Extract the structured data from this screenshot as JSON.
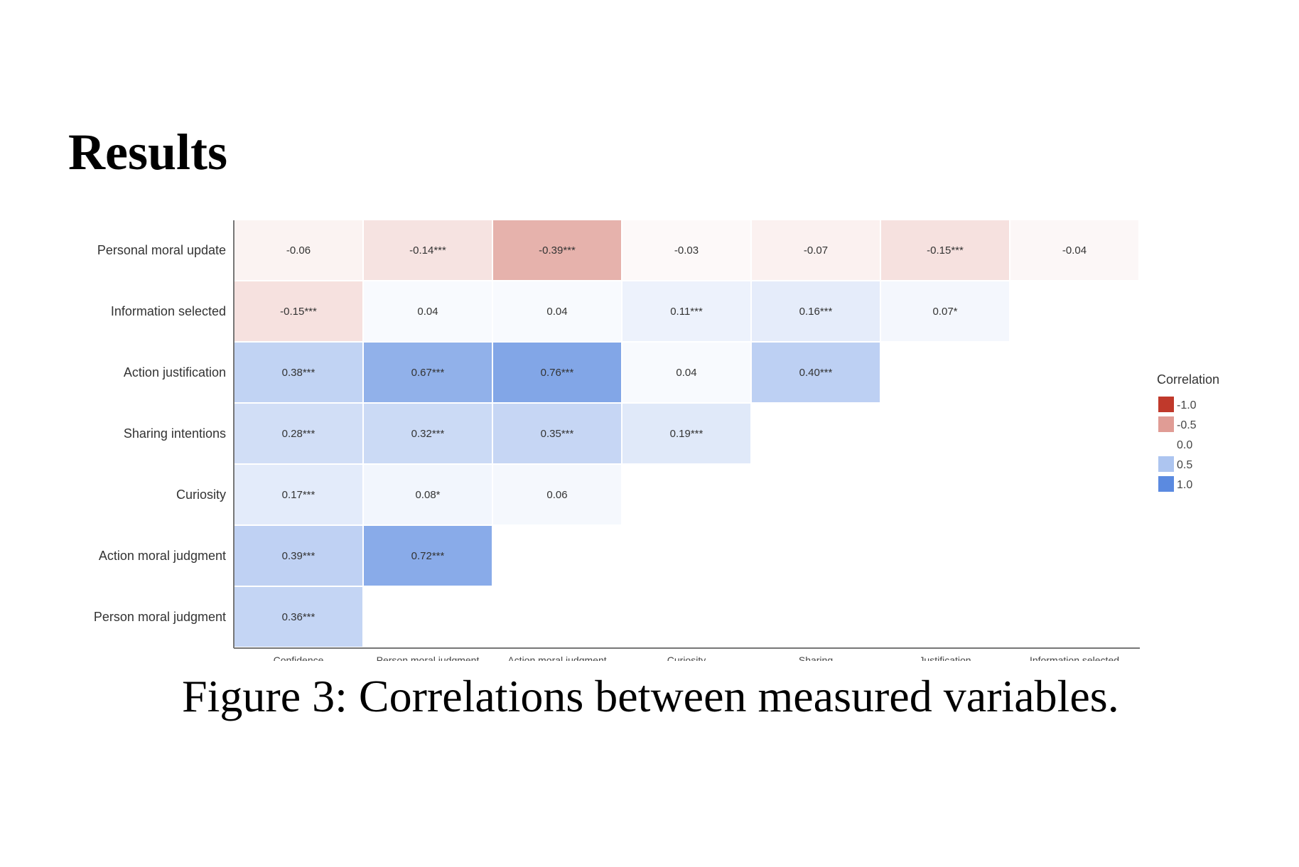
{
  "page": {
    "heading": "Results",
    "caption": "Figure 3: Correlations between measured variables."
  },
  "chart_data": {
    "type": "heatmap",
    "title": "",
    "rows": [
      "Personal moral update",
      "Information selected",
      "Action justification",
      "Sharing intentions",
      "Curiosity",
      "Action moral judgment",
      "Person moral judgment"
    ],
    "columns": [
      "Confidence",
      "Person moral judgment",
      "Action moral judgment",
      "Curiosity",
      "Sharing",
      "Justification",
      "Information selected"
    ],
    "values": [
      [
        -0.06,
        -0.14,
        -0.39,
        -0.03,
        -0.07,
        -0.15,
        -0.04
      ],
      [
        -0.15,
        0.04,
        0.04,
        0.11,
        0.16,
        0.07,
        null
      ],
      [
        0.38,
        0.67,
        0.76,
        0.04,
        0.4,
        null,
        null
      ],
      [
        0.28,
        0.32,
        0.35,
        0.19,
        null,
        null,
        null
      ],
      [
        0.17,
        0.08,
        0.06,
        null,
        null,
        null,
        null
      ],
      [
        0.39,
        0.72,
        null,
        null,
        null,
        null,
        null
      ],
      [
        0.36,
        null,
        null,
        null,
        null,
        null,
        null
      ]
    ],
    "labels": [
      [
        "-0.06",
        "-0.14***",
        "-0.39***",
        "-0.03",
        "-0.07",
        "-0.15***",
        "-0.04"
      ],
      [
        "-0.15***",
        "0.04",
        "0.04",
        "0.11***",
        "0.16***",
        "0.07*",
        null
      ],
      [
        "0.38***",
        "0.67***",
        "0.76***",
        "0.04",
        "0.40***",
        null,
        null
      ],
      [
        "0.28***",
        "0.32***",
        "0.35***",
        "0.19***",
        null,
        null,
        null
      ],
      [
        "0.17***",
        "0.08*",
        "0.06",
        null,
        null,
        null,
        null
      ],
      [
        "0.39***",
        "0.72***",
        null,
        null,
        null,
        null,
        null
      ],
      [
        "0.36***",
        null,
        null,
        null,
        null,
        null,
        null
      ]
    ],
    "color_range": [
      -1.0,
      1.0
    ],
    "colors": {
      "negative": "#c0392b",
      "neutral": "#ffffff",
      "positive": "#5b8ae0"
    },
    "legend": {
      "title": "Correlation",
      "placement": "right",
      "items": [
        {
          "label": "-1.0",
          "value": -1.0
        },
        {
          "label": "-0.5",
          "value": -0.5
        },
        {
          "label": "0.0",
          "value": 0.0
        },
        {
          "label": "0.5",
          "value": 0.5
        },
        {
          "label": "1.0",
          "value": 1.0
        }
      ]
    },
    "grid": false
  }
}
